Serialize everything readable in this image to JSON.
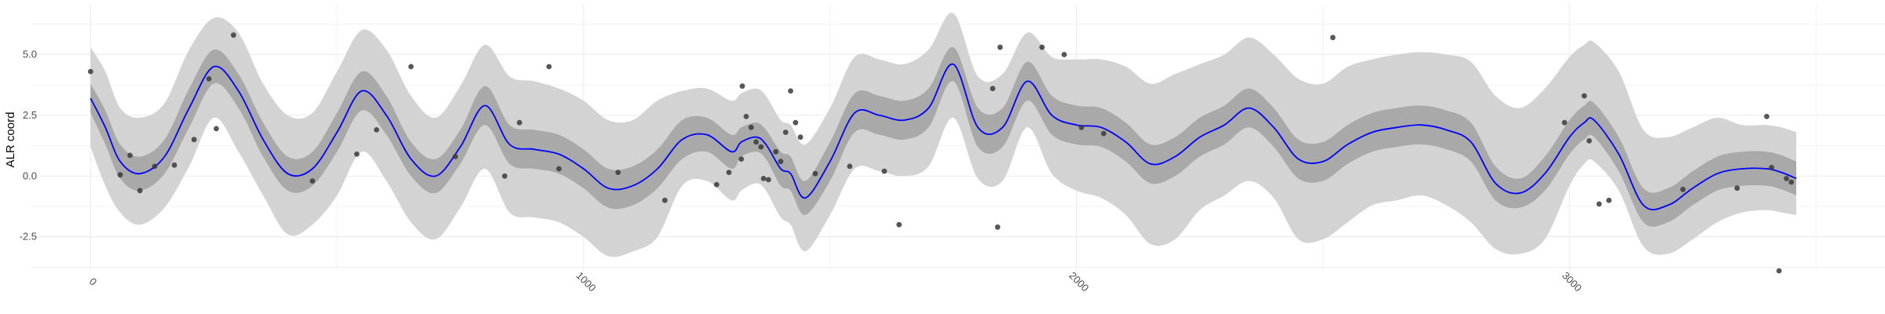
{
  "chart_data": {
    "type": "line",
    "title": "",
    "xlabel": "",
    "ylabel": "ALR coord",
    "xlim": [
      -120,
      3640
    ],
    "ylim": [
      -3.9,
      7.05
    ],
    "grid": true,
    "x_ticks": [
      0,
      1000,
      2000,
      3000
    ],
    "y_ticks": [
      -2.5,
      0.0,
      2.5,
      5.0
    ],
    "x_tick_labels": [
      "0",
      "1000",
      "2000",
      "3000"
    ],
    "y_tick_labels": [
      "-2.5",
      "0.0",
      "2.5",
      "5.0"
    ],
    "colors": {
      "mean_line": "#0000ff",
      "inner_band": "#a9a9a9",
      "outer_band": "#d3d3d3",
      "points": "#3a3a3a",
      "grid": "#ebebeb"
    },
    "series": [
      {
        "kind": "mean",
        "x": [
          0,
          30,
          60,
          100,
          150,
          200,
          250,
          300,
          350,
          400,
          450,
          500,
          550,
          600,
          650,
          700,
          750,
          800,
          850,
          900,
          950,
          1000,
          1050,
          1100,
          1150,
          1200,
          1250,
          1300,
          1320,
          1350,
          1370,
          1400,
          1420,
          1450,
          1500,
          1550,
          1600,
          1650,
          1700,
          1750,
          1800,
          1850,
          1900,
          1950,
          2000,
          2050,
          2100,
          2150,
          2200,
          2250,
          2300,
          2350,
          2400,
          2450,
          2500,
          2550,
          2600,
          2650,
          2700,
          2750,
          2800,
          2850,
          2900,
          2950,
          3000,
          3030,
          3050,
          3100,
          3150,
          3200,
          3250,
          3300,
          3350,
          3400,
          3430,
          3460
        ],
        "y": [
          3.2,
          2.0,
          0.6,
          0.1,
          0.8,
          2.8,
          4.5,
          3.5,
          1.5,
          0.1,
          0.3,
          1.8,
          3.5,
          2.5,
          0.7,
          0.0,
          1.2,
          2.9,
          1.3,
          1.1,
          0.9,
          0.3,
          -0.5,
          -0.4,
          0.3,
          1.5,
          1.7,
          1.0,
          1.4,
          1.6,
          1.3,
          0.3,
          0.1,
          -0.9,
          0.6,
          2.6,
          2.5,
          2.3,
          2.8,
          4.6,
          2.0,
          2.0,
          3.9,
          2.5,
          2.1,
          2.0,
          1.4,
          0.5,
          0.8,
          1.6,
          2.1,
          2.8,
          2.0,
          0.7,
          0.6,
          1.3,
          1.8,
          2.0,
          2.1,
          1.9,
          1.4,
          -0.3,
          -0.7,
          0.1,
          1.6,
          2.2,
          2.3,
          0.9,
          -1.2,
          -1.2,
          -0.5,
          0.1,
          0.3,
          0.3,
          0.15,
          -0.1
        ]
      },
      {
        "kind": "inner_band",
        "lower": [
          2.6,
          1.3,
          -0.1,
          -0.6,
          0.1,
          2.0,
          3.8,
          2.8,
          0.8,
          -0.6,
          -0.4,
          1.0,
          2.7,
          1.7,
          0.0,
          -0.7,
          0.5,
          2.1,
          0.5,
          0.3,
          0.1,
          -0.5,
          -1.3,
          -1.2,
          -0.5,
          0.7,
          1.0,
          0.3,
          0.8,
          1.0,
          0.7,
          -0.4,
          -0.6,
          -1.6,
          -0.2,
          1.8,
          1.7,
          1.5,
          2.0,
          3.9,
          1.2,
          1.2,
          3.1,
          1.7,
          1.3,
          1.2,
          0.6,
          -0.3,
          0.0,
          0.8,
          1.3,
          2.0,
          1.2,
          -0.1,
          -0.2,
          0.5,
          1.0,
          1.2,
          1.3,
          1.1,
          0.6,
          -1.0,
          -1.3,
          -0.6,
          0.9,
          1.5,
          1.6,
          0.2,
          -1.9,
          -1.9,
          -1.2,
          -0.6,
          -0.4,
          -0.4,
          -0.55,
          -0.8
        ],
        "upper": [
          3.8,
          2.7,
          1.3,
          0.8,
          1.5,
          3.6,
          5.2,
          4.2,
          2.2,
          0.8,
          1.0,
          2.6,
          4.3,
          3.3,
          1.4,
          0.7,
          1.9,
          3.7,
          2.1,
          1.9,
          1.7,
          1.1,
          0.3,
          0.4,
          1.1,
          2.3,
          2.4,
          1.7,
          2.0,
          2.2,
          1.9,
          1.0,
          0.8,
          -0.2,
          1.4,
          3.4,
          3.3,
          3.1,
          3.6,
          5.3,
          2.8,
          2.8,
          4.7,
          3.3,
          2.9,
          2.8,
          2.2,
          1.3,
          1.6,
          2.4,
          2.9,
          3.6,
          2.8,
          1.5,
          1.4,
          2.1,
          2.6,
          2.8,
          2.9,
          2.7,
          2.2,
          0.4,
          -0.1,
          0.8,
          2.3,
          2.9,
          3.0,
          1.6,
          -0.5,
          -0.5,
          0.2,
          0.8,
          1.0,
          1.0,
          0.85,
          0.6
        ]
      },
      {
        "kind": "outer_band",
        "lower": [
          1.2,
          -0.4,
          -1.5,
          -2.0,
          -1.3,
          0.4,
          2.4,
          1.0,
          -0.8,
          -2.4,
          -2.0,
          -0.8,
          1.0,
          -0.2,
          -1.9,
          -2.6,
          -1.3,
          0.3,
          -1.5,
          -1.7,
          -1.9,
          -2.5,
          -3.3,
          -3.1,
          -2.5,
          -0.4,
          -0.2,
          -1.0,
          -0.6,
          -0.3,
          -0.6,
          -1.7,
          -2.0,
          -3.1,
          -1.6,
          0.3,
          0.2,
          0.0,
          0.4,
          2.4,
          -0.1,
          -0.2,
          2.0,
          0.1,
          -0.6,
          -0.9,
          -1.6,
          -2.8,
          -2.6,
          -1.4,
          -0.8,
          -0.2,
          -0.9,
          -2.6,
          -2.6,
          -1.9,
          -1.2,
          -1.0,
          -0.8,
          -1.2,
          -1.9,
          -3.0,
          -3.2,
          -2.6,
          -0.4,
          0.5,
          0.6,
          -0.6,
          -2.9,
          -3.2,
          -2.6,
          -1.9,
          -1.5,
          -1.4,
          -1.5,
          -1.6
        ],
        "upper": [
          5.3,
          4.3,
          2.8,
          2.4,
          3.0,
          5.2,
          6.5,
          5.9,
          3.8,
          2.5,
          2.6,
          4.3,
          6.0,
          5.2,
          3.3,
          2.4,
          3.7,
          5.4,
          4.1,
          3.9,
          3.6,
          3.1,
          2.3,
          2.3,
          3.1,
          3.5,
          3.6,
          3.1,
          3.4,
          3.6,
          3.3,
          2.3,
          2.1,
          1.3,
          2.8,
          4.9,
          4.8,
          4.6,
          5.2,
          6.7,
          4.1,
          4.2,
          5.9,
          4.9,
          4.8,
          4.8,
          4.5,
          3.8,
          4.2,
          4.6,
          5.0,
          5.7,
          5.0,
          4.0,
          3.8,
          4.5,
          4.8,
          5.0,
          5.1,
          5.0,
          4.7,
          3.3,
          2.8,
          3.6,
          4.9,
          5.4,
          5.5,
          4.3,
          1.9,
          1.6,
          2.0,
          2.4,
          2.1,
          2.1,
          2.0,
          1.8
        ]
      }
    ],
    "points": {
      "x": [
        0,
        60,
        80,
        100,
        130,
        170,
        210,
        240,
        255,
        290,
        450,
        540,
        580,
        650,
        740,
        840,
        870,
        930,
        950,
        1070,
        1165,
        1270,
        1295,
        1320,
        1322,
        1330,
        1340,
        1350,
        1360,
        1365,
        1375,
        1390,
        1400,
        1410,
        1420,
        1430,
        1440,
        1470,
        1540,
        1610,
        1640,
        1830,
        1840,
        1845,
        1930,
        1975,
        2010,
        2055,
        2520,
        2990,
        3030,
        3040,
        3060,
        3080,
        3230,
        3340,
        3400,
        3410,
        3425,
        3440,
        3450
      ],
      "y": [
        4.3,
        0.05,
        0.85,
        -0.6,
        0.4,
        0.45,
        1.5,
        4.0,
        1.95,
        5.8,
        -0.2,
        0.9,
        1.9,
        4.5,
        0.8,
        0.0,
        2.2,
        4.5,
        0.3,
        0.15,
        -1.0,
        -0.35,
        0.15,
        0.7,
        3.7,
        2.45,
        2.0,
        1.4,
        1.2,
        -0.1,
        -0.15,
        1.0,
        0.6,
        1.8,
        3.5,
        2.2,
        1.6,
        0.1,
        0.4,
        0.2,
        -2.0,
        3.6,
        -2.1,
        5.3,
        5.3,
        5.0,
        2.0,
        1.75,
        5.7,
        2.2,
        3.3,
        1.45,
        -1.15,
        -1.0,
        -0.55,
        -0.5,
        2.45,
        0.35,
        -3.9,
        -0.1,
        -0.25
      ]
    }
  }
}
